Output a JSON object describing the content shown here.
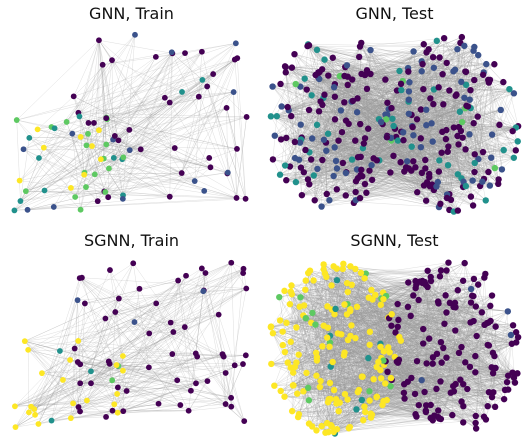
{
  "chart_data": [
    {
      "type": "network",
      "title": "GNN, Train",
      "node_count": 90,
      "edge_density": "sparse",
      "node_colormap": "viridis",
      "node_color_pattern": "left cluster green/yellow, right cluster dark purple"
    },
    {
      "type": "network",
      "title": "GNN, Test",
      "node_count": 330,
      "edge_density": "dense",
      "node_colormap": "viridis",
      "node_color_pattern": "mostly dark purple / blue with scattered teal"
    },
    {
      "type": "network",
      "title": "SGNN, Train",
      "node_count": 90,
      "edge_density": "sparse",
      "node_colormap": "viridis",
      "node_color_pattern": "left cluster yellow, right cluster dark purple"
    },
    {
      "type": "network",
      "title": "SGNN, Test",
      "node_count": 330,
      "edge_density": "dense",
      "node_colormap": "viridis",
      "node_color_pattern": "left cluster yellow, right cluster dark purple"
    }
  ],
  "colors": {
    "purple": "#440154",
    "blue": "#3b528b",
    "teal": "#21918c",
    "green": "#5ec962",
    "yellow": "#fde725",
    "edge": "#9a9a9a"
  }
}
